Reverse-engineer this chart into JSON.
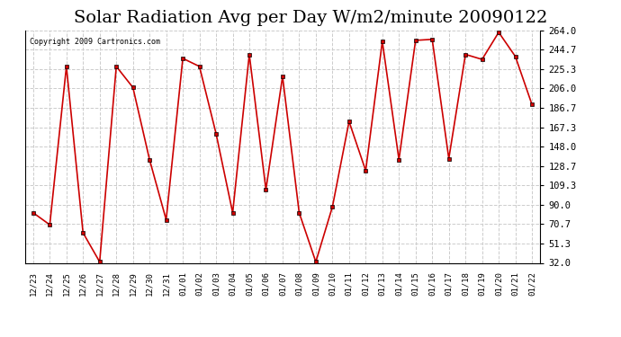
{
  "title": "Solar Radiation Avg per Day W/m2/minute 20090122",
  "copyright": "Copyright 2009 Cartronics.com",
  "x_labels": [
    "12/23",
    "12/24",
    "12/25",
    "12/26",
    "12/27",
    "12/28",
    "12/29",
    "12/30",
    "12/31",
    "01/01",
    "01/02",
    "01/03",
    "01/04",
    "01/05",
    "01/06",
    "01/07",
    "01/08",
    "01/09",
    "01/10",
    "01/11",
    "01/12",
    "01/13",
    "01/14",
    "01/15",
    "01/16",
    "01/17",
    "01/18",
    "01/19",
    "01/20",
    "01/21",
    "01/22"
  ],
  "y_values": [
    82,
    70,
    228,
    62,
    33,
    228,
    207,
    135,
    75,
    236,
    228,
    161,
    82,
    240,
    105,
    218,
    82,
    33,
    88,
    173,
    124,
    253,
    135,
    254,
    255,
    136,
    240,
    235,
    262,
    238,
    190
  ],
  "y_ticks": [
    32.0,
    51.3,
    70.7,
    90.0,
    109.3,
    128.7,
    148.0,
    167.3,
    186.7,
    206.0,
    225.3,
    244.7,
    264.0
  ],
  "line_color": "#cc0000",
  "marker_color": "#000000",
  "bg_color": "#ffffff",
  "plot_bg_color": "#ffffff",
  "grid_color": "#cccccc",
  "title_fontsize": 14,
  "ylabel_right": true,
  "ylim": [
    32.0,
    264.0
  ]
}
